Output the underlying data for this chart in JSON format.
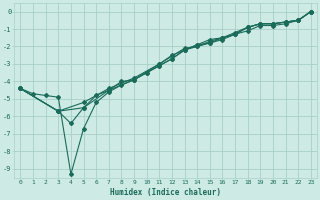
{
  "xlabel": "Humidex (Indice chaleur)",
  "ylabel": "",
  "bg_color": "#ceeae5",
  "grid_color": "#a8cfc9",
  "line_color": "#1a6b5a",
  "marker_color": "#1a6b5a",
  "xlim": [
    -0.5,
    23.5
  ],
  "ylim": [
    -9.5,
    0.5
  ],
  "xticks": [
    0,
    1,
    2,
    3,
    4,
    5,
    6,
    7,
    8,
    9,
    10,
    11,
    12,
    13,
    14,
    15,
    16,
    17,
    18,
    19,
    20,
    21,
    22,
    23
  ],
  "yticks": [
    0,
    -1,
    -2,
    -3,
    -4,
    -5,
    -6,
    -7,
    -8,
    -9
  ],
  "line1_x": [
    0,
    1,
    2,
    3,
    4,
    5,
    6,
    7,
    8,
    9,
    10,
    11,
    12,
    13,
    14,
    15,
    16,
    17,
    18,
    19,
    20,
    21,
    22,
    23
  ],
  "line1_y": [
    -4.4,
    -4.7,
    -4.8,
    -4.9,
    -9.3,
    -6.7,
    -5.2,
    -4.6,
    -4.2,
    -3.9,
    -3.5,
    -3.1,
    -2.7,
    -2.2,
    -1.9,
    -1.8,
    -1.5,
    -1.3,
    -0.9,
    -0.7,
    -0.7,
    -0.6,
    -0.5,
    0.0
  ],
  "line2_x": [
    0,
    3,
    4,
    5,
    6,
    7,
    8,
    9,
    10,
    11,
    12,
    13,
    14,
    15,
    16,
    17,
    18,
    19,
    20,
    21,
    22,
    23
  ],
  "line2_y": [
    -4.4,
    -5.7,
    -6.4,
    -5.5,
    -4.8,
    -4.5,
    -4.0,
    -3.9,
    -3.5,
    -3.1,
    -2.7,
    -2.2,
    -1.9,
    -1.6,
    -1.5,
    -1.3,
    -0.9,
    -0.7,
    -0.7,
    -0.6,
    -0.5,
    0.0
  ],
  "line3_x": [
    0,
    3,
    5,
    7,
    9,
    11,
    13,
    14,
    15,
    16,
    17,
    18,
    19,
    20,
    21,
    22,
    23
  ],
  "line3_y": [
    -4.4,
    -5.7,
    -5.5,
    -4.5,
    -3.9,
    -3.0,
    -2.1,
    -2.0,
    -1.7,
    -1.5,
    -1.2,
    -0.9,
    -0.7,
    -0.7,
    -0.6,
    -0.5,
    0.0
  ],
  "line4_x": [
    0,
    3,
    5,
    7,
    9,
    11,
    12,
    13,
    14,
    15,
    16,
    17,
    18,
    19,
    20,
    21,
    22,
    23
  ],
  "line4_y": [
    -4.4,
    -5.7,
    -5.2,
    -4.4,
    -3.8,
    -3.0,
    -2.5,
    -2.2,
    -2.0,
    -1.8,
    -1.6,
    -1.3,
    -1.1,
    -0.8,
    -0.8,
    -0.7,
    -0.5,
    0.0
  ]
}
